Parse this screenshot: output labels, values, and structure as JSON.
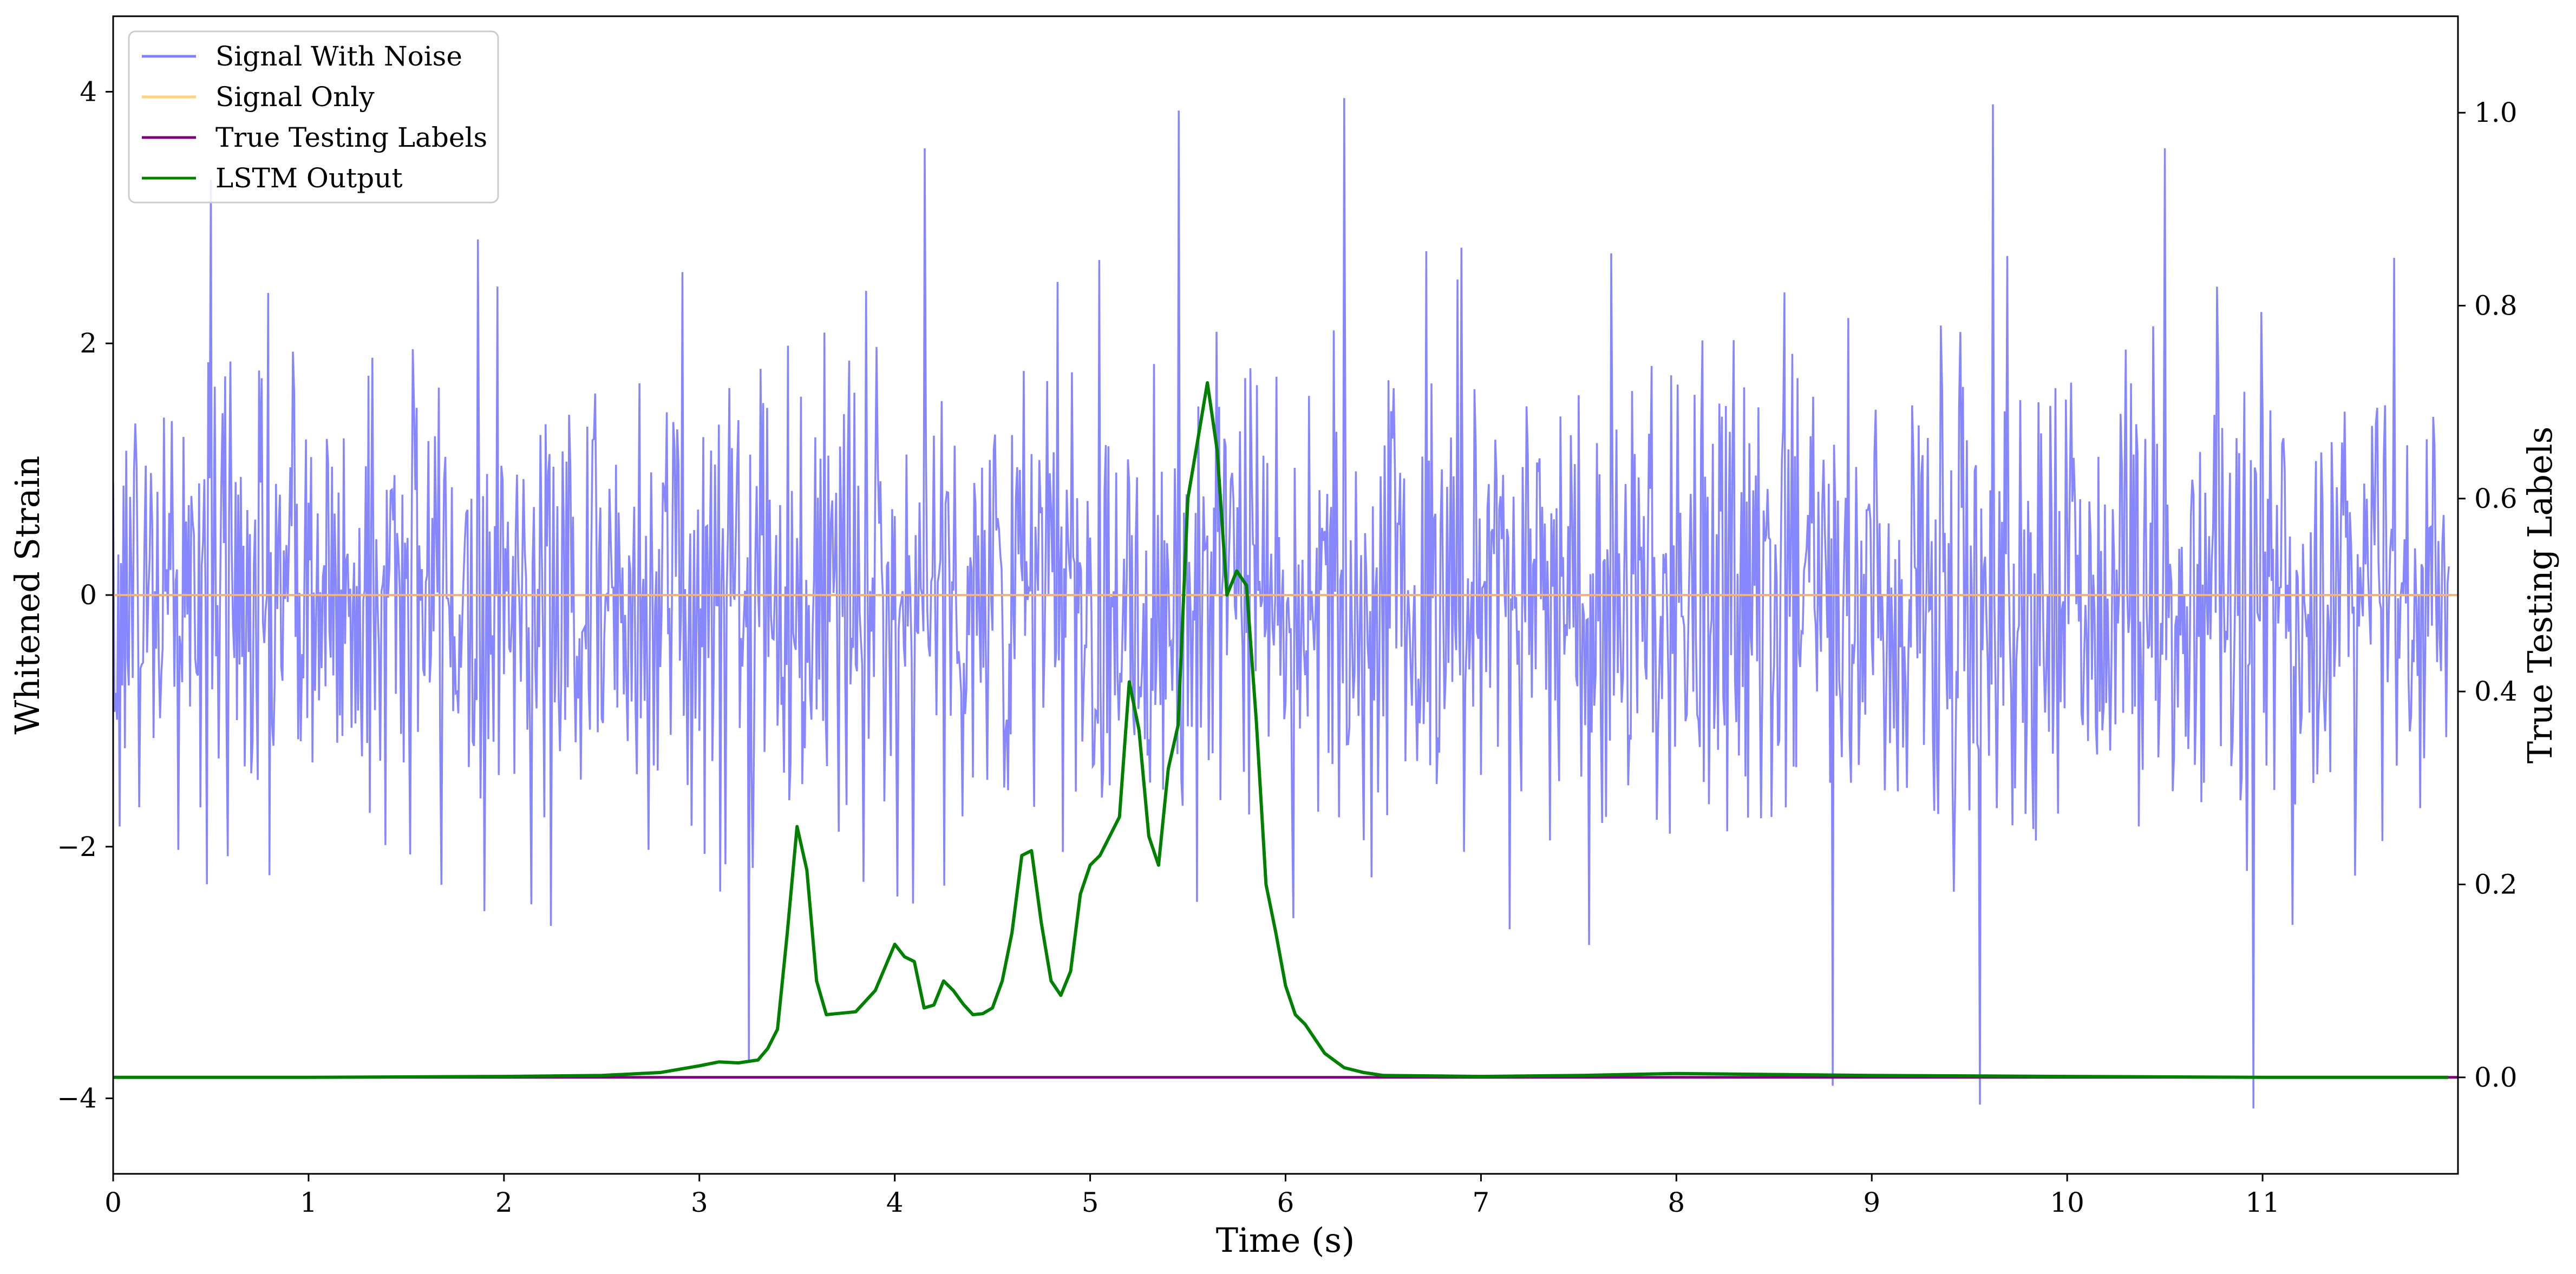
{
  "chart_data": {
    "type": "line",
    "xlabel": "Time (s)",
    "ylabel_left": "Whitened Strain",
    "ylabel_right": "True Testing Labels",
    "xlim": [
      0,
      12
    ],
    "ylim_left": [
      -4.6,
      4.6
    ],
    "ylim_right": [
      -0.1,
      1.1
    ],
    "x_ticks": [
      0,
      1,
      2,
      3,
      4,
      5,
      6,
      7,
      8,
      9,
      10,
      11
    ],
    "y_left_ticks": [
      -4,
      -2,
      0,
      2,
      4
    ],
    "y_left_tick_labels": [
      "−4",
      "−2",
      "0",
      "2",
      "4"
    ],
    "y_right_ticks": [
      0.0,
      0.2,
      0.4,
      0.6,
      0.8,
      1.0
    ],
    "y_right_tick_labels": [
      "0.0",
      "0.2",
      "0.4",
      "0.6",
      "0.8",
      "1.0"
    ],
    "grid": false,
    "legend_position": "top-left",
    "series": [
      {
        "name": "Signal With Noise",
        "axis": "left",
        "color": "#8080ff",
        "kind": "noise",
        "sample_rate_hz": 150,
        "std": 0.95,
        "envelope": [
          -2.6,
          2.7
        ],
        "max": 3.95,
        "min": -4.08
      },
      {
        "name": "Signal Only",
        "axis": "left",
        "color": "#ffd27f",
        "x": [
          0,
          12
        ],
        "y": [
          0,
          0
        ]
      },
      {
        "name": "True Testing Labels",
        "axis": "right",
        "color": "#800080",
        "x": [
          0,
          12
        ],
        "y": [
          0,
          0
        ]
      },
      {
        "name": "LSTM Output",
        "axis": "right",
        "color": "#008000",
        "x": [
          0,
          1,
          2,
          2.5,
          2.8,
          3.0,
          3.1,
          3.2,
          3.3,
          3.35,
          3.4,
          3.45,
          3.5,
          3.55,
          3.6,
          3.65,
          3.7,
          3.8,
          3.9,
          4.0,
          4.05,
          4.1,
          4.15,
          4.2,
          4.25,
          4.3,
          4.35,
          4.4,
          4.45,
          4.5,
          4.55,
          4.6,
          4.65,
          4.7,
          4.75,
          4.8,
          4.85,
          4.9,
          4.95,
          5.0,
          5.05,
          5.1,
          5.15,
          5.2,
          5.25,
          5.3,
          5.35,
          5.4,
          5.45,
          5.5,
          5.55,
          5.6,
          5.65,
          5.7,
          5.75,
          5.8,
          5.85,
          5.9,
          5.95,
          6.0,
          6.05,
          6.1,
          6.15,
          6.2,
          6.3,
          6.4,
          6.5,
          7.0,
          7.5,
          8.0,
          8.5,
          9.0,
          10.0,
          11.0,
          11.95
        ],
        "y": [
          0.0,
          0.0,
          0.001,
          0.002,
          0.005,
          0.012,
          0.016,
          0.015,
          0.018,
          0.03,
          0.05,
          0.15,
          0.26,
          0.215,
          0.1,
          0.065,
          0.066,
          0.068,
          0.09,
          0.138,
          0.125,
          0.12,
          0.072,
          0.075,
          0.1,
          0.09,
          0.076,
          0.065,
          0.066,
          0.072,
          0.1,
          0.15,
          0.23,
          0.235,
          0.16,
          0.1,
          0.085,
          0.11,
          0.19,
          0.22,
          0.23,
          0.25,
          0.27,
          0.41,
          0.36,
          0.25,
          0.22,
          0.32,
          0.365,
          0.6,
          0.66,
          0.72,
          0.65,
          0.5,
          0.525,
          0.51,
          0.37,
          0.2,
          0.15,
          0.095,
          0.065,
          0.055,
          0.04,
          0.025,
          0.01,
          0.005,
          0.002,
          0.001,
          0.002,
          0.004,
          0.003,
          0.002,
          0.001,
          0.0,
          0.0
        ]
      }
    ]
  }
}
